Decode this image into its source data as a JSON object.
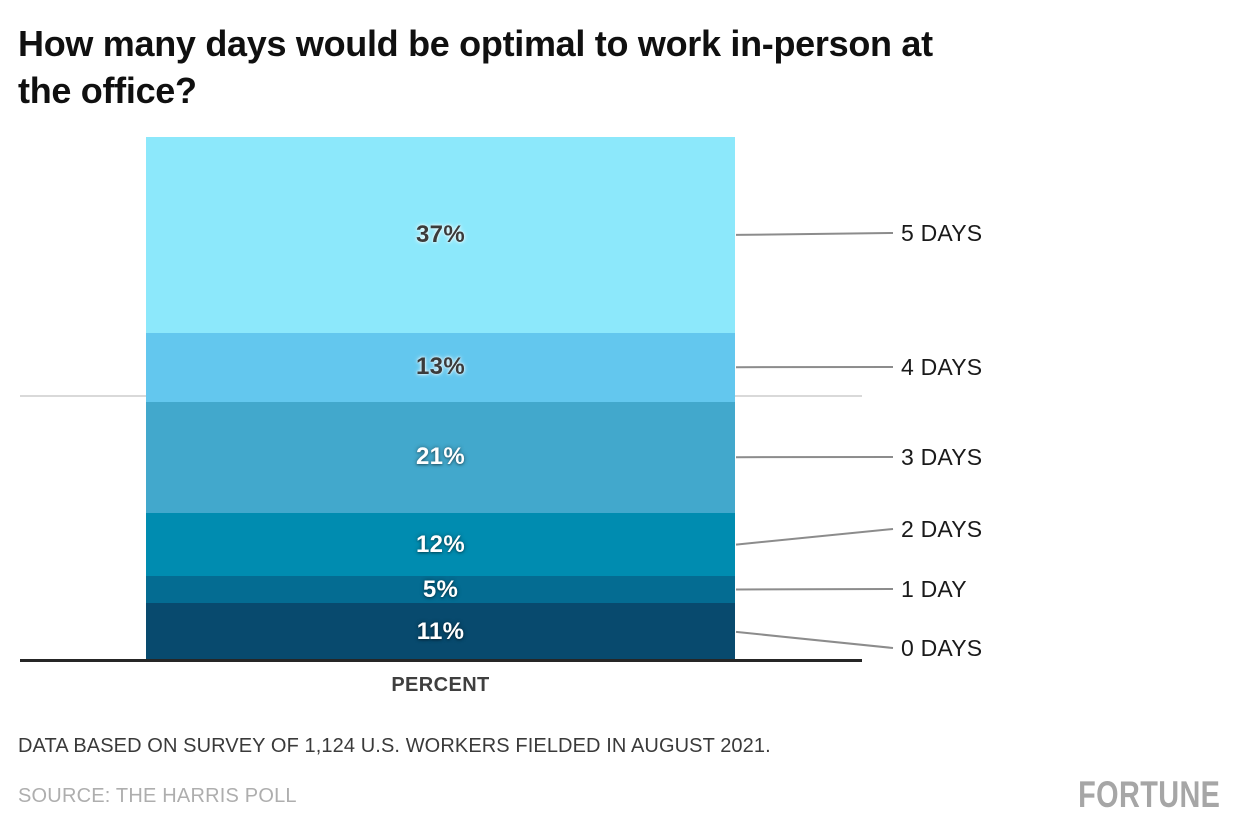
{
  "header": {
    "title": "How many days would be optimal to work in-person at the office?",
    "title_lines": [
      "How many days would be optimal to work in-person at",
      "the office?"
    ]
  },
  "chart_data": {
    "type": "bar",
    "variant": "single-column-stacked",
    "stacked": true,
    "unit": "percent",
    "categories": [
      "5 DAYS",
      "4 DAYS",
      "3 DAYS",
      "2 DAYS",
      "1 DAY",
      "0 DAYS"
    ],
    "values": [
      37,
      13,
      21,
      12,
      5,
      11
    ],
    "value_labels": [
      "37%",
      "13%",
      "21%",
      "12%",
      "5%",
      "11%"
    ],
    "segment_colors": [
      "#8ce8fb",
      "#63c7ee",
      "#42a8cc",
      "#008cb0",
      "#046c92",
      "#084a6e"
    ],
    "value_label_colors": [
      "#3b3b3b",
      "#3b3b3b",
      "#ffffff",
      "#ffffff",
      "#ffffff",
      "#ffffff"
    ],
    "xlabel": "PERCENT",
    "ylim": [
      0,
      100
    ],
    "gridline_at": 50,
    "grid": "single light horizontal gridline at 50, drawn behind bar",
    "legend_position": "right-side connector labels",
    "colors": {
      "axis": "#262626",
      "gridline": "#d9d9d9",
      "connector": "#8c8c8c",
      "category_label": "#1a1a1a"
    }
  },
  "footnote": "DATA BASED ON SURVEY OF 1,124 U.S. WORKERS FIELDED IN AUGUST 2021.",
  "source": "SOURCE: THE HARRIS POLL",
  "brand": "FORTUNE"
}
